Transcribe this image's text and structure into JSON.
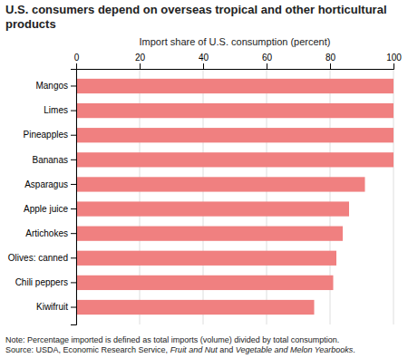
{
  "chart_data": {
    "type": "bar",
    "orientation": "horizontal",
    "title": "U.S. consumers depend on overseas tropical and other horticultural products",
    "xlabel": "Import share of U.S. consumption (percent)",
    "categories": [
      "Kiwifruit",
      "Chili peppers",
      "Olives: canned",
      "Artichokes",
      "Apple juice",
      "Asparagus",
      "Bananas",
      "Pineapples",
      "Limes",
      "Mangos"
    ],
    "values": [
      75,
      81,
      82,
      84,
      86,
      91,
      100,
      100,
      100,
      100
    ],
    "color": "#f08080",
    "xlim": [
      0,
      100
    ],
    "xticks": [
      0,
      20,
      40,
      60,
      80,
      100
    ],
    "grid": true,
    "note": "Note: Percentage imported is defined as total imports (volume) divided by total consumption.",
    "source": [
      "Source: USDA, Economic Research Service, ",
      "Fruit and Nut",
      " and ",
      "Vegetable and Melon Yearbooks",
      "."
    ]
  }
}
